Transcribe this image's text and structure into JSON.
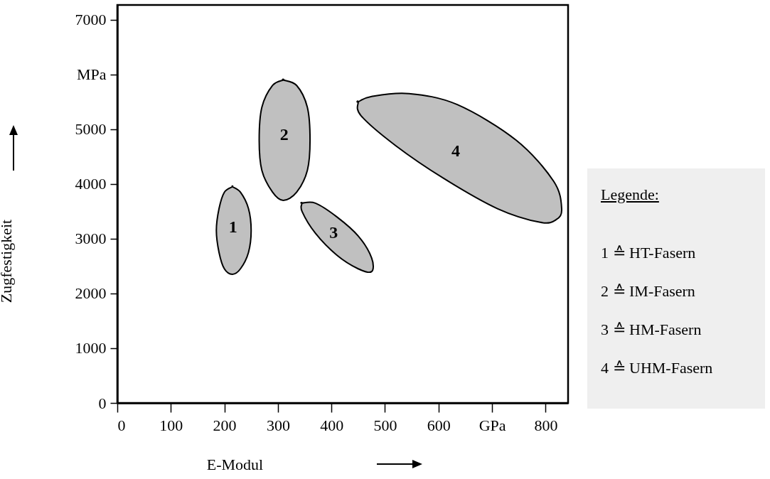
{
  "chart_data": {
    "type": "area",
    "xlabel": "E-Modul",
    "ylabel": "Zugfestigkeit",
    "xlim": [
      0,
      842
    ],
    "ylim": [
      0,
      7270
    ],
    "xticks": [
      0,
      100,
      200,
      300,
      400,
      500,
      600,
      {
        "value": 700,
        "label": "GPa"
      },
      800
    ],
    "yticks": [
      0,
      1000,
      2000,
      3000,
      4000,
      5000,
      {
        "value": 6000,
        "label": "MPa"
      },
      7000
    ],
    "grid": false,
    "marker": "none",
    "line_style": "solid",
    "series": [
      {
        "name": "1",
        "color": "#c0c0c0",
        "x": [
          215,
          230,
          245,
          250,
          245,
          230,
          215,
          200,
          190,
          185,
          190,
          200,
          215
        ],
        "values": [
          3950,
          3850,
          3550,
          3150,
          2750,
          2450,
          2350,
          2450,
          2750,
          3150,
          3550,
          3850,
          3950
        ]
      },
      {
        "name": "2",
        "color": "#c0c0c0",
        "x": [
          310,
          335,
          355,
          360,
          355,
          335,
          310,
          290,
          270,
          265,
          270,
          290,
          310
        ],
        "values": [
          5900,
          5800,
          5400,
          4800,
          4250,
          3850,
          3700,
          3850,
          4250,
          4800,
          5400,
          5800,
          5900
        ]
      },
      {
        "name": "3",
        "color": "#c0c0c0",
        "x": [
          345,
          370,
          410,
          450,
          475,
          475,
          450,
          410,
          370,
          345,
          345
        ],
        "values": [
          3650,
          3650,
          3400,
          3050,
          2650,
          2400,
          2450,
          2700,
          3100,
          3500,
          3650
        ]
      },
      {
        "name": "4",
        "color": "#c0c0c0",
        "x": [
          450,
          475,
          545,
          635,
          745,
          815,
          830,
          820,
          790,
          710,
          610,
          520,
          455,
          450
        ],
        "values": [
          5500,
          5600,
          5650,
          5450,
          4800,
          4050,
          3550,
          3350,
          3300,
          3550,
          4100,
          4700,
          5250,
          5500
        ]
      }
    ],
    "annotations": [
      "Legende:",
      "1 ≙ HT-Fasern",
      "2 ≙ IM-Fasern",
      "3 ≙ HM-Fasern",
      "4 ≙ UHM-Fasern"
    ]
  }
}
